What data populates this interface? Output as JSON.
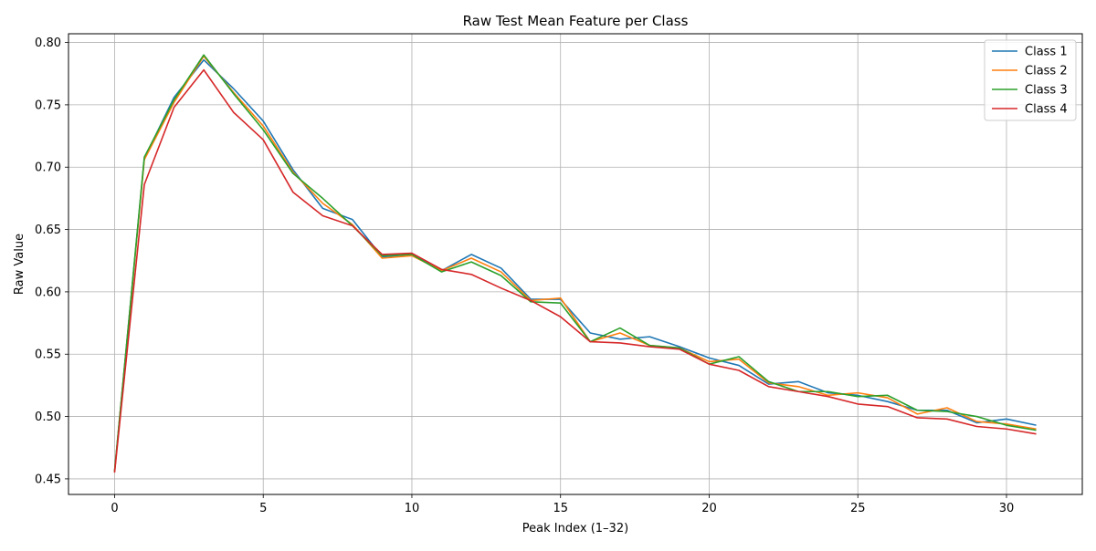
{
  "chart_data": {
    "type": "line",
    "title": "Raw Test Mean Feature per Class",
    "xlabel": "Peak Index (1–32)",
    "ylabel": "Raw Value",
    "xlim": [
      -1.55,
      32.55
    ],
    "ylim": [
      0.4375,
      0.807
    ],
    "xticks": [
      0,
      5,
      10,
      15,
      20,
      25,
      30
    ],
    "yticks": [
      0.45,
      0.5,
      0.55,
      0.6,
      0.65,
      0.7,
      0.75,
      0.8
    ],
    "grid": true,
    "legend_position": "top-right",
    "x": [
      0,
      1,
      2,
      3,
      4,
      5,
      6,
      7,
      8,
      9,
      10,
      11,
      12,
      13,
      14,
      15,
      16,
      17,
      18,
      19,
      20,
      21,
      22,
      23,
      24,
      25,
      26,
      27,
      28,
      29,
      30,
      31
    ],
    "series": [
      {
        "name": "Class 1",
        "color": "#1f77b4",
        "values": [
          0.456,
          0.707,
          0.756,
          0.786,
          0.763,
          0.737,
          0.698,
          0.667,
          0.658,
          0.628,
          0.63,
          0.617,
          0.63,
          0.619,
          0.594,
          0.594,
          0.567,
          0.562,
          0.564,
          0.556,
          0.547,
          0.541,
          0.526,
          0.528,
          0.519,
          0.517,
          0.512,
          0.505,
          0.505,
          0.495,
          0.498,
          0.493
        ]
      },
      {
        "name": "Class 2",
        "color": "#ff7f0e",
        "values": [
          0.456,
          0.706,
          0.752,
          0.789,
          0.76,
          0.733,
          0.696,
          0.671,
          0.654,
          0.627,
          0.629,
          0.617,
          0.627,
          0.616,
          0.593,
          0.595,
          0.56,
          0.567,
          0.557,
          0.555,
          0.544,
          0.546,
          0.527,
          0.524,
          0.517,
          0.519,
          0.515,
          0.502,
          0.507,
          0.496,
          0.494,
          0.49
        ]
      },
      {
        "name": "Class 3",
        "color": "#2ca02c",
        "values": [
          0.456,
          0.708,
          0.754,
          0.79,
          0.759,
          0.73,
          0.695,
          0.675,
          0.653,
          0.629,
          0.63,
          0.616,
          0.624,
          0.613,
          0.592,
          0.591,
          0.56,
          0.571,
          0.557,
          0.555,
          0.542,
          0.548,
          0.528,
          0.52,
          0.52,
          0.516,
          0.517,
          0.505,
          0.504,
          0.5,
          0.493,
          0.489
        ]
      },
      {
        "name": "Class 4",
        "color": "#d62728",
        "values": [
          0.455,
          0.686,
          0.748,
          0.778,
          0.744,
          0.722,
          0.68,
          0.661,
          0.653,
          0.63,
          0.631,
          0.618,
          0.614,
          0.603,
          0.593,
          0.58,
          0.56,
          0.559,
          0.556,
          0.554,
          0.542,
          0.537,
          0.524,
          0.52,
          0.516,
          0.51,
          0.508,
          0.499,
          0.498,
          0.492,
          0.49,
          0.486
        ]
      }
    ]
  }
}
